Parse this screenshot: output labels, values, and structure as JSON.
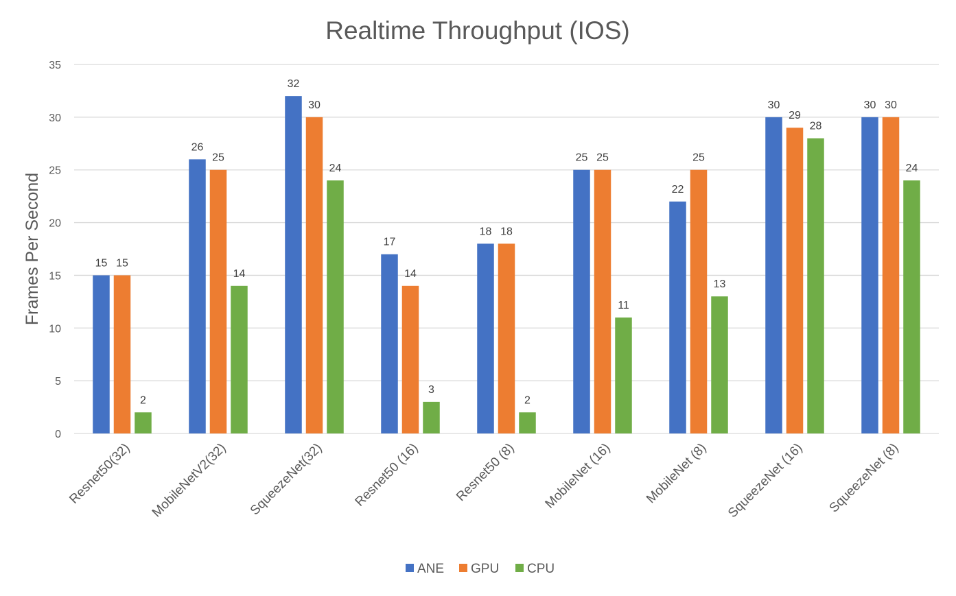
{
  "chart_data": {
    "type": "bar",
    "title": "Realtime Throughput (IOS)",
    "xlabel": "",
    "ylabel": "Frames Per Second",
    "ylim": [
      0,
      35
    ],
    "yticks": [
      0,
      5,
      10,
      15,
      20,
      25,
      30,
      35
    ],
    "grid": true,
    "legend_position": "bottom",
    "data_labels": true,
    "categories": [
      "Resnet50(32)",
      "MobileNetV2(32)",
      "SqueezeNet(32)",
      "Resnet50 (16)",
      "Resnet50 (8)",
      "MobileNet (16)",
      "MobileNet (8)",
      "SqueezeNet (16)",
      "SqueezeNet (8)"
    ],
    "series": [
      {
        "name": "ANE",
        "color": "#4472c4",
        "values": [
          15,
          26,
          32,
          17,
          18,
          25,
          22,
          30,
          30
        ]
      },
      {
        "name": "GPU",
        "color": "#ed7d31",
        "values": [
          15,
          25,
          30,
          14,
          18,
          25,
          25,
          29,
          30
        ]
      },
      {
        "name": "CPU",
        "color": "#70ad47",
        "values": [
          2,
          14,
          24,
          3,
          2,
          11,
          13,
          28,
          24
        ]
      }
    ]
  }
}
